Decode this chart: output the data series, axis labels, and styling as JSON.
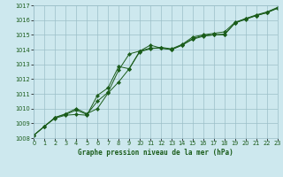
{
  "title": "Graphe pression niveau de la mer (hPa)",
  "hours": [
    0,
    1,
    2,
    3,
    4,
    5,
    6,
    7,
    8,
    9,
    10,
    11,
    12,
    13,
    14,
    15,
    16,
    17,
    18,
    19,
    20,
    21,
    22,
    23
  ],
  "series1": [
    1008.2,
    1008.8,
    1009.4,
    1009.6,
    1009.9,
    1009.6,
    1010.5,
    1011.1,
    1012.6,
    1013.7,
    1013.9,
    1014.3,
    1014.1,
    1014.0,
    1014.3,
    1014.7,
    1014.9,
    1015.0,
    1015.0,
    1015.8,
    1016.1,
    1016.3,
    1016.5,
    1016.8
  ],
  "series2": [
    1008.2,
    1008.8,
    1009.4,
    1009.65,
    1010.0,
    1009.65,
    1010.0,
    1011.05,
    1011.8,
    1012.7,
    1013.85,
    1014.05,
    1014.15,
    1014.05,
    1014.35,
    1014.85,
    1015.0,
    1015.1,
    1015.2,
    1015.85,
    1016.1,
    1016.35,
    1016.55,
    1016.85
  ],
  "series3": [
    1008.2,
    1008.8,
    1009.35,
    1009.55,
    1009.6,
    1009.55,
    1010.9,
    1011.4,
    1012.85,
    1012.7,
    1013.9,
    1014.1,
    1014.1,
    1014.0,
    1014.3,
    1014.75,
    1014.95,
    1015.0,
    1015.05,
    1015.8,
    1016.05,
    1016.3,
    1016.5,
    1016.8
  ],
  "ylim_min": 1008,
  "ylim_max": 1017,
  "yticks": [
    1008,
    1009,
    1010,
    1011,
    1012,
    1013,
    1014,
    1015,
    1016,
    1017
  ],
  "bg_color": "#cde8ee",
  "grid_color": "#9bbfc8",
  "line_color": "#1a5c1a",
  "text_color": "#1a5c1a",
  "title_fontsize": 5.5,
  "tick_fontsize": 4.8
}
